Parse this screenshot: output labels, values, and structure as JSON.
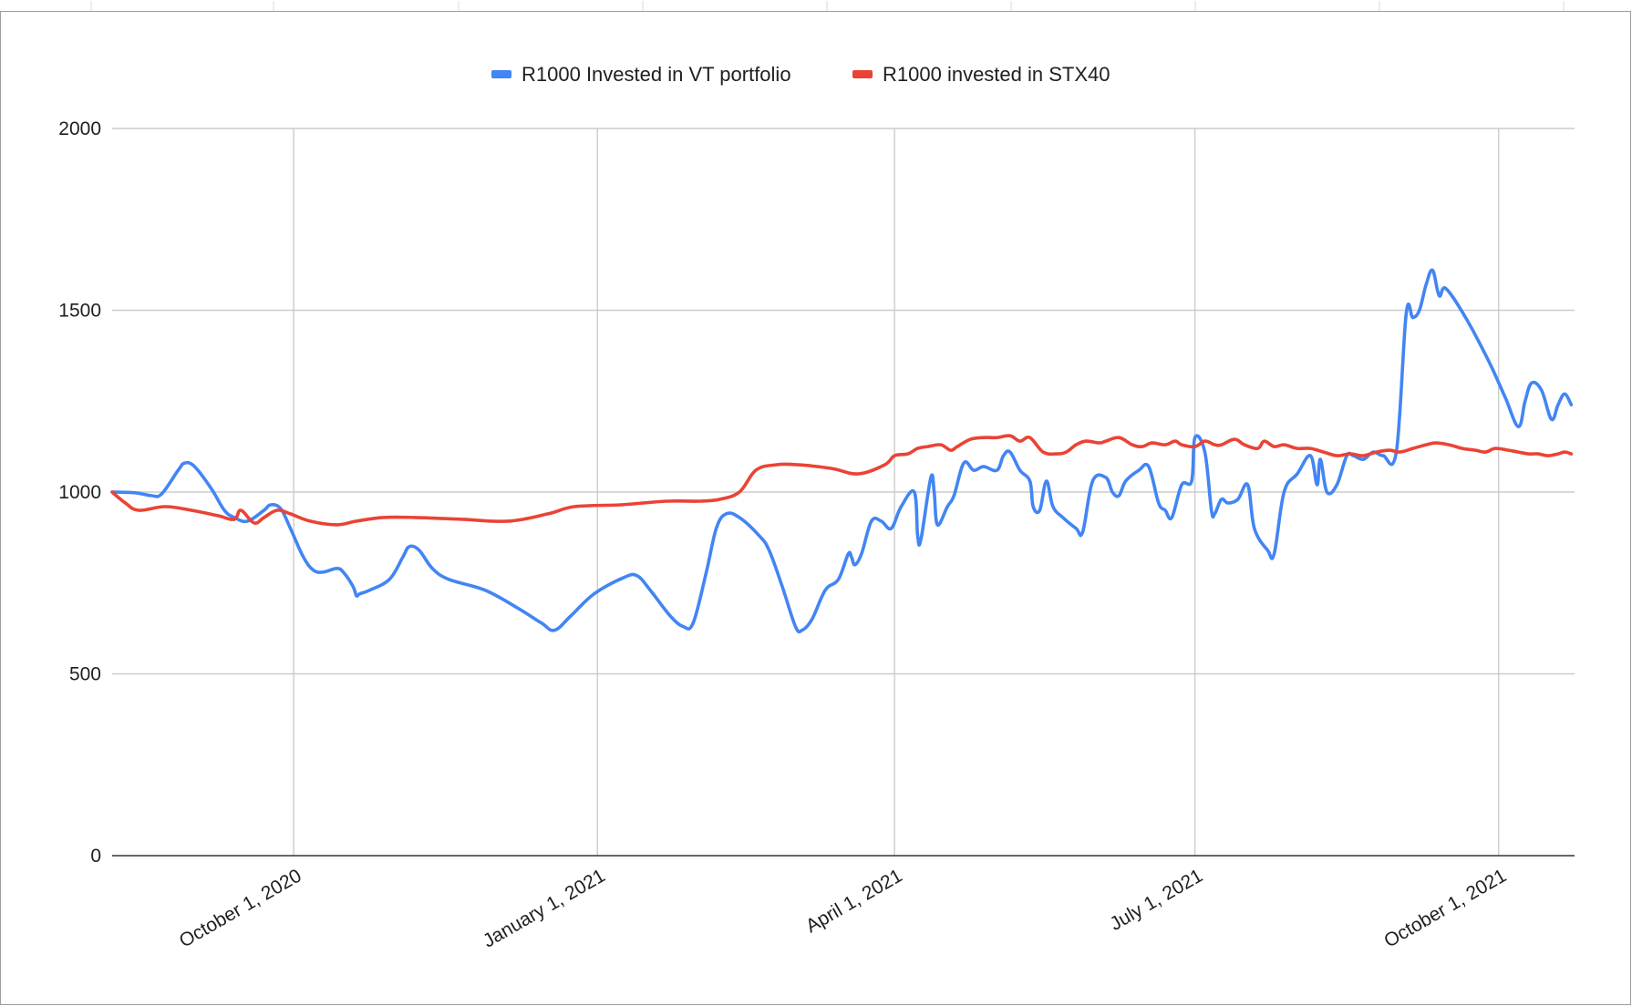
{
  "chart_data": {
    "type": "line",
    "title": "",
    "xlabel": "",
    "ylabel": "",
    "x_axis_type": "date",
    "xlim": [
      "2020-08-07",
      "2021-10-24"
    ],
    "ylim": [
      0,
      2000
    ],
    "y_ticks": [
      0,
      500,
      1000,
      1500,
      2000
    ],
    "x_ticks": [
      {
        "date": "2020-10-01",
        "label": "October 1, 2020"
      },
      {
        "date": "2021-01-01",
        "label": "January 1, 2021"
      },
      {
        "date": "2021-04-01",
        "label": "April 1, 2021"
      },
      {
        "date": "2021-07-01",
        "label": "July 1, 2021"
      },
      {
        "date": "2021-10-01",
        "label": "October 1, 2021"
      }
    ],
    "grid": true,
    "legend_position": "top",
    "series": [
      {
        "name": "R1000 Invested in VT portfolio",
        "color": "#4285f4",
        "points": [
          [
            "2020-08-07",
            1000
          ],
          [
            "2020-08-14",
            998
          ],
          [
            "2020-08-19",
            990
          ],
          [
            "2020-08-22",
            995
          ],
          [
            "2020-08-27",
            1060
          ],
          [
            "2020-08-29",
            1080
          ],
          [
            "2020-09-01",
            1070
          ],
          [
            "2020-09-06",
            1010
          ],
          [
            "2020-09-10",
            950
          ],
          [
            "2020-09-13",
            930
          ],
          [
            "2020-09-17",
            920
          ],
          [
            "2020-09-22",
            950
          ],
          [
            "2020-09-24",
            965
          ],
          [
            "2020-09-27",
            955
          ],
          [
            "2020-09-30",
            900
          ],
          [
            "2020-10-04",
            820
          ],
          [
            "2020-10-07",
            785
          ],
          [
            "2020-10-10",
            780
          ],
          [
            "2020-10-14",
            790
          ],
          [
            "2020-10-16",
            780
          ],
          [
            "2020-10-19",
            740
          ],
          [
            "2020-10-20",
            715
          ],
          [
            "2020-10-21",
            720
          ],
          [
            "2020-10-24",
            730
          ],
          [
            "2020-10-30",
            760
          ],
          [
            "2020-11-03",
            820
          ],
          [
            "2020-11-05",
            850
          ],
          [
            "2020-11-08",
            840
          ],
          [
            "2020-11-12",
            790
          ],
          [
            "2020-11-17",
            760
          ],
          [
            "2020-11-28",
            730
          ],
          [
            "2020-12-08",
            680
          ],
          [
            "2020-12-15",
            640
          ],
          [
            "2020-12-19",
            620
          ],
          [
            "2020-12-24",
            660
          ],
          [
            "2020-12-31",
            720
          ],
          [
            "2021-01-09",
            765
          ],
          [
            "2021-01-13",
            770
          ],
          [
            "2021-01-17",
            730
          ],
          [
            "2021-01-23",
            660
          ],
          [
            "2021-01-27",
            630
          ],
          [
            "2021-01-30",
            640
          ],
          [
            "2021-02-03",
            780
          ],
          [
            "2021-02-06",
            900
          ],
          [
            "2021-02-09",
            940
          ],
          [
            "2021-02-13",
            930
          ],
          [
            "2021-02-19",
            880
          ],
          [
            "2021-02-22",
            840
          ],
          [
            "2021-02-26",
            740
          ],
          [
            "2021-03-02",
            630
          ],
          [
            "2021-03-04",
            620
          ],
          [
            "2021-03-07",
            650
          ],
          [
            "2021-03-11",
            730
          ],
          [
            "2021-03-15",
            760
          ],
          [
            "2021-03-18",
            830
          ],
          [
            "2021-03-19",
            820
          ],
          [
            "2021-03-20",
            800
          ],
          [
            "2021-03-22",
            830
          ],
          [
            "2021-03-25",
            920
          ],
          [
            "2021-03-28",
            920
          ],
          [
            "2021-03-31",
            900
          ],
          [
            "2021-04-03",
            960
          ],
          [
            "2021-04-07",
            1000
          ],
          [
            "2021-04-08",
            880
          ],
          [
            "2021-04-09",
            870
          ],
          [
            "2021-04-12",
            1040
          ],
          [
            "2021-04-13",
            1000
          ],
          [
            "2021-04-14",
            910
          ],
          [
            "2021-04-17",
            960
          ],
          [
            "2021-04-19",
            990
          ],
          [
            "2021-04-22",
            1080
          ],
          [
            "2021-04-25",
            1060
          ],
          [
            "2021-04-28",
            1070
          ],
          [
            "2021-05-02",
            1060
          ],
          [
            "2021-05-04",
            1100
          ],
          [
            "2021-05-06",
            1110
          ],
          [
            "2021-05-09",
            1060
          ],
          [
            "2021-05-12",
            1030
          ],
          [
            "2021-05-13",
            960
          ],
          [
            "2021-05-15",
            950
          ],
          [
            "2021-05-17",
            1030
          ],
          [
            "2021-05-19",
            960
          ],
          [
            "2021-05-22",
            930
          ],
          [
            "2021-05-26",
            900
          ],
          [
            "2021-05-28",
            890
          ],
          [
            "2021-05-31",
            1030
          ],
          [
            "2021-06-04",
            1040
          ],
          [
            "2021-06-06",
            1000
          ],
          [
            "2021-06-08",
            990
          ],
          [
            "2021-06-10",
            1030
          ],
          [
            "2021-06-14",
            1060
          ],
          [
            "2021-06-17",
            1070
          ],
          [
            "2021-06-20",
            970
          ],
          [
            "2021-06-22",
            950
          ],
          [
            "2021-06-24",
            930
          ],
          [
            "2021-06-27",
            1020
          ],
          [
            "2021-06-30",
            1030
          ],
          [
            "2021-07-01",
            1150
          ],
          [
            "2021-07-04",
            1110
          ],
          [
            "2021-07-06",
            950
          ],
          [
            "2021-07-07",
            940
          ],
          [
            "2021-07-09",
            980
          ],
          [
            "2021-07-11",
            970
          ],
          [
            "2021-07-14",
            980
          ],
          [
            "2021-07-17",
            1020
          ],
          [
            "2021-07-19",
            900
          ],
          [
            "2021-07-23",
            840
          ],
          [
            "2021-07-25",
            830
          ],
          [
            "2021-07-28",
            1000
          ],
          [
            "2021-08-01",
            1050
          ],
          [
            "2021-08-05",
            1100
          ],
          [
            "2021-08-07",
            1020
          ],
          [
            "2021-08-08",
            1090
          ],
          [
            "2021-08-10",
            1000
          ],
          [
            "2021-08-13",
            1020
          ],
          [
            "2021-08-16",
            1100
          ],
          [
            "2021-08-18",
            1100
          ],
          [
            "2021-08-21",
            1090
          ],
          [
            "2021-08-24",
            1110
          ],
          [
            "2021-08-27",
            1100
          ],
          [
            "2021-08-31",
            1110
          ],
          [
            "2021-09-03",
            1490
          ],
          [
            "2021-09-05",
            1480
          ],
          [
            "2021-09-07",
            1500
          ],
          [
            "2021-09-09",
            1570
          ],
          [
            "2021-09-11",
            1610
          ],
          [
            "2021-09-13",
            1540
          ],
          [
            "2021-09-15",
            1560
          ],
          [
            "2021-09-21",
            1480
          ],
          [
            "2021-09-28",
            1360
          ],
          [
            "2021-10-03",
            1260
          ],
          [
            "2021-10-07",
            1180
          ],
          [
            "2021-10-09",
            1250
          ],
          [
            "2021-10-11",
            1300
          ],
          [
            "2021-10-14",
            1280
          ],
          [
            "2021-10-17",
            1200
          ],
          [
            "2021-10-19",
            1240
          ],
          [
            "2021-10-21",
            1270
          ],
          [
            "2021-10-23",
            1240
          ]
        ]
      },
      {
        "name": "R1000 invested in STX40",
        "color": "#ea4335",
        "points": [
          [
            "2020-08-07",
            1000
          ],
          [
            "2020-08-11",
            970
          ],
          [
            "2020-08-15",
            950
          ],
          [
            "2020-08-23",
            960
          ],
          [
            "2020-08-31",
            950
          ],
          [
            "2020-09-08",
            935
          ],
          [
            "2020-09-13",
            925
          ],
          [
            "2020-09-15",
            950
          ],
          [
            "2020-09-19",
            915
          ],
          [
            "2020-09-22",
            930
          ],
          [
            "2020-09-26",
            950
          ],
          [
            "2020-09-30",
            940
          ],
          [
            "2020-10-06",
            920
          ],
          [
            "2020-10-14",
            910
          ],
          [
            "2020-10-20",
            920
          ],
          [
            "2020-10-28",
            930
          ],
          [
            "2020-11-07",
            930
          ],
          [
            "2020-11-21",
            925
          ],
          [
            "2020-12-05",
            920
          ],
          [
            "2020-12-17",
            940
          ],
          [
            "2020-12-25",
            960
          ],
          [
            "2021-01-08",
            965
          ],
          [
            "2021-01-22",
            975
          ],
          [
            "2021-02-01",
            975
          ],
          [
            "2021-02-07",
            980
          ],
          [
            "2021-02-13",
            1000
          ],
          [
            "2021-02-18",
            1060
          ],
          [
            "2021-02-24",
            1075
          ],
          [
            "2021-03-03",
            1075
          ],
          [
            "2021-03-13",
            1065
          ],
          [
            "2021-03-21",
            1050
          ],
          [
            "2021-03-29",
            1075
          ],
          [
            "2021-04-01",
            1100
          ],
          [
            "2021-04-05",
            1105
          ],
          [
            "2021-04-08",
            1120
          ],
          [
            "2021-04-11",
            1125
          ],
          [
            "2021-04-15",
            1130
          ],
          [
            "2021-04-18",
            1115
          ],
          [
            "2021-04-20",
            1125
          ],
          [
            "2021-04-24",
            1145
          ],
          [
            "2021-04-28",
            1150
          ],
          [
            "2021-05-02",
            1150
          ],
          [
            "2021-05-06",
            1155
          ],
          [
            "2021-05-09",
            1140
          ],
          [
            "2021-05-12",
            1150
          ],
          [
            "2021-05-16",
            1110
          ],
          [
            "2021-05-20",
            1105
          ],
          [
            "2021-05-23",
            1110
          ],
          [
            "2021-05-26",
            1130
          ],
          [
            "2021-05-29",
            1140
          ],
          [
            "2021-06-02",
            1135
          ],
          [
            "2021-06-04",
            1140
          ],
          [
            "2021-06-08",
            1150
          ],
          [
            "2021-06-12",
            1130
          ],
          [
            "2021-06-15",
            1125
          ],
          [
            "2021-06-18",
            1135
          ],
          [
            "2021-06-22",
            1130
          ],
          [
            "2021-06-25",
            1140
          ],
          [
            "2021-06-27",
            1130
          ],
          [
            "2021-07-01",
            1125
          ],
          [
            "2021-07-04",
            1140
          ],
          [
            "2021-07-07",
            1130
          ],
          [
            "2021-07-09",
            1130
          ],
          [
            "2021-07-13",
            1145
          ],
          [
            "2021-07-16",
            1130
          ],
          [
            "2021-07-20",
            1120
          ],
          [
            "2021-07-22",
            1140
          ],
          [
            "2021-07-25",
            1125
          ],
          [
            "2021-07-28",
            1130
          ],
          [
            "2021-08-01",
            1120
          ],
          [
            "2021-08-05",
            1120
          ],
          [
            "2021-08-09",
            1110
          ],
          [
            "2021-08-13",
            1100
          ],
          [
            "2021-08-17",
            1105
          ],
          [
            "2021-08-21",
            1100
          ],
          [
            "2021-08-25",
            1110
          ],
          [
            "2021-08-29",
            1115
          ],
          [
            "2021-09-01",
            1110
          ],
          [
            "2021-09-05",
            1120
          ],
          [
            "2021-09-09",
            1130
          ],
          [
            "2021-09-12",
            1135
          ],
          [
            "2021-09-16",
            1130
          ],
          [
            "2021-09-20",
            1120
          ],
          [
            "2021-09-24",
            1115
          ],
          [
            "2021-09-27",
            1110
          ],
          [
            "2021-09-30",
            1120
          ],
          [
            "2021-10-04",
            1115
          ],
          [
            "2021-10-07",
            1110
          ],
          [
            "2021-10-10",
            1105
          ],
          [
            "2021-10-13",
            1105
          ],
          [
            "2021-10-16",
            1100
          ],
          [
            "2021-10-19",
            1105
          ],
          [
            "2021-10-21",
            1110
          ],
          [
            "2021-10-23",
            1105
          ]
        ]
      }
    ]
  }
}
